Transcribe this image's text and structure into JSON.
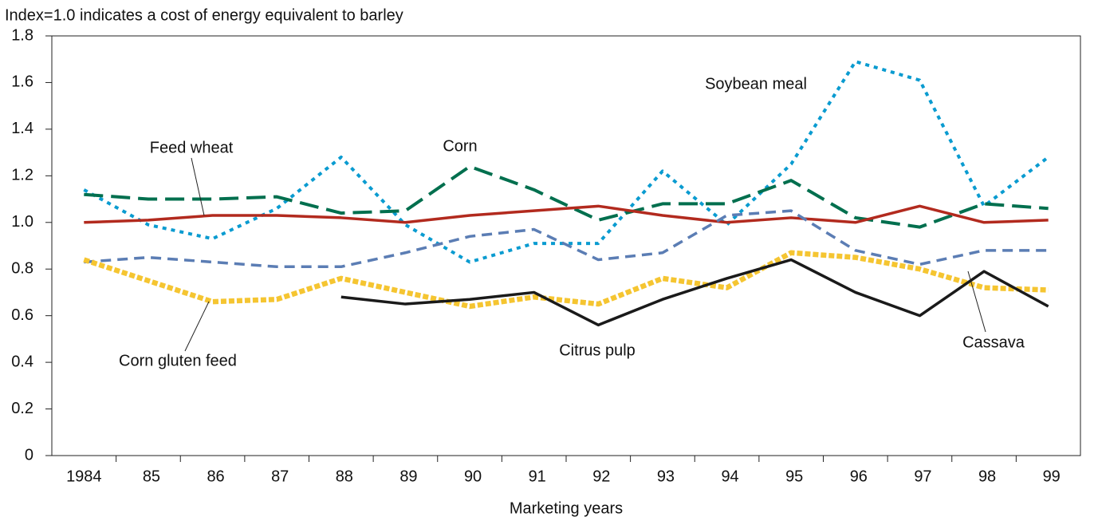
{
  "chart_data": {
    "type": "line",
    "title": "Index=1.0 indicates a cost of energy equivalent to barley",
    "x_label": "Marketing years",
    "categories": [
      "1984",
      "85",
      "86",
      "87",
      "88",
      "89",
      "90",
      "91",
      "92",
      "93",
      "94",
      "95",
      "96",
      "97",
      "98",
      "99"
    ],
    "ylim": [
      0,
      1.8
    ],
    "yticks": [
      0,
      0.2,
      0.4,
      0.6,
      0.8,
      {
        "value": 1,
        "label": "1.0"
      },
      1.2,
      1.4,
      1.6,
      1.8
    ],
    "grid": false,
    "series": [
      {
        "name": "Soybean meal",
        "color": "#0a9bd0",
        "values": [
          1.14,
          0.99,
          0.93,
          1.06,
          1.28,
          0.99,
          0.83,
          0.91,
          0.91,
          1.22,
          0.99,
          1.25,
          1.69,
          1.61,
          1.07,
          1.28
        ]
      },
      {
        "name": "Corn",
        "color": "#006f4e",
        "values": [
          1.12,
          1.1,
          1.1,
          1.11,
          1.04,
          1.05,
          1.24,
          1.14,
          1.01,
          1.08,
          1.08,
          1.18,
          1.02,
          0.98,
          1.08,
          1.06
        ]
      },
      {
        "name": "Feed wheat",
        "color": "#b22a1e",
        "values": [
          1.0,
          1.01,
          1.03,
          1.03,
          1.02,
          1.0,
          1.03,
          1.05,
          1.07,
          1.03,
          1.0,
          1.02,
          1.0,
          1.07,
          1.0,
          1.01
        ]
      },
      {
        "name": "Cassava",
        "color": "#5b7db4",
        "values": [
          0.83,
          0.85,
          0.83,
          0.81,
          0.81,
          0.87,
          0.94,
          0.97,
          0.84,
          0.87,
          1.03,
          1.05,
          0.88,
          0.82,
          0.88,
          0.88
        ]
      },
      {
        "name": "Corn gluten feed",
        "color": "#f5c531",
        "values": [
          0.84,
          0.75,
          0.66,
          0.67,
          0.76,
          0.7,
          0.64,
          0.68,
          0.65,
          0.76,
          0.72,
          0.87,
          0.85,
          0.8,
          0.72,
          0.71
        ]
      },
      {
        "name": "Citrus pulp",
        "color": "#1a1a1a",
        "values": [
          null,
          null,
          null,
          null,
          0.68,
          0.65,
          0.67,
          0.7,
          0.56,
          0.67,
          0.76,
          0.84,
          0.7,
          0.6,
          0.79,
          0.64
        ]
      }
    ]
  }
}
